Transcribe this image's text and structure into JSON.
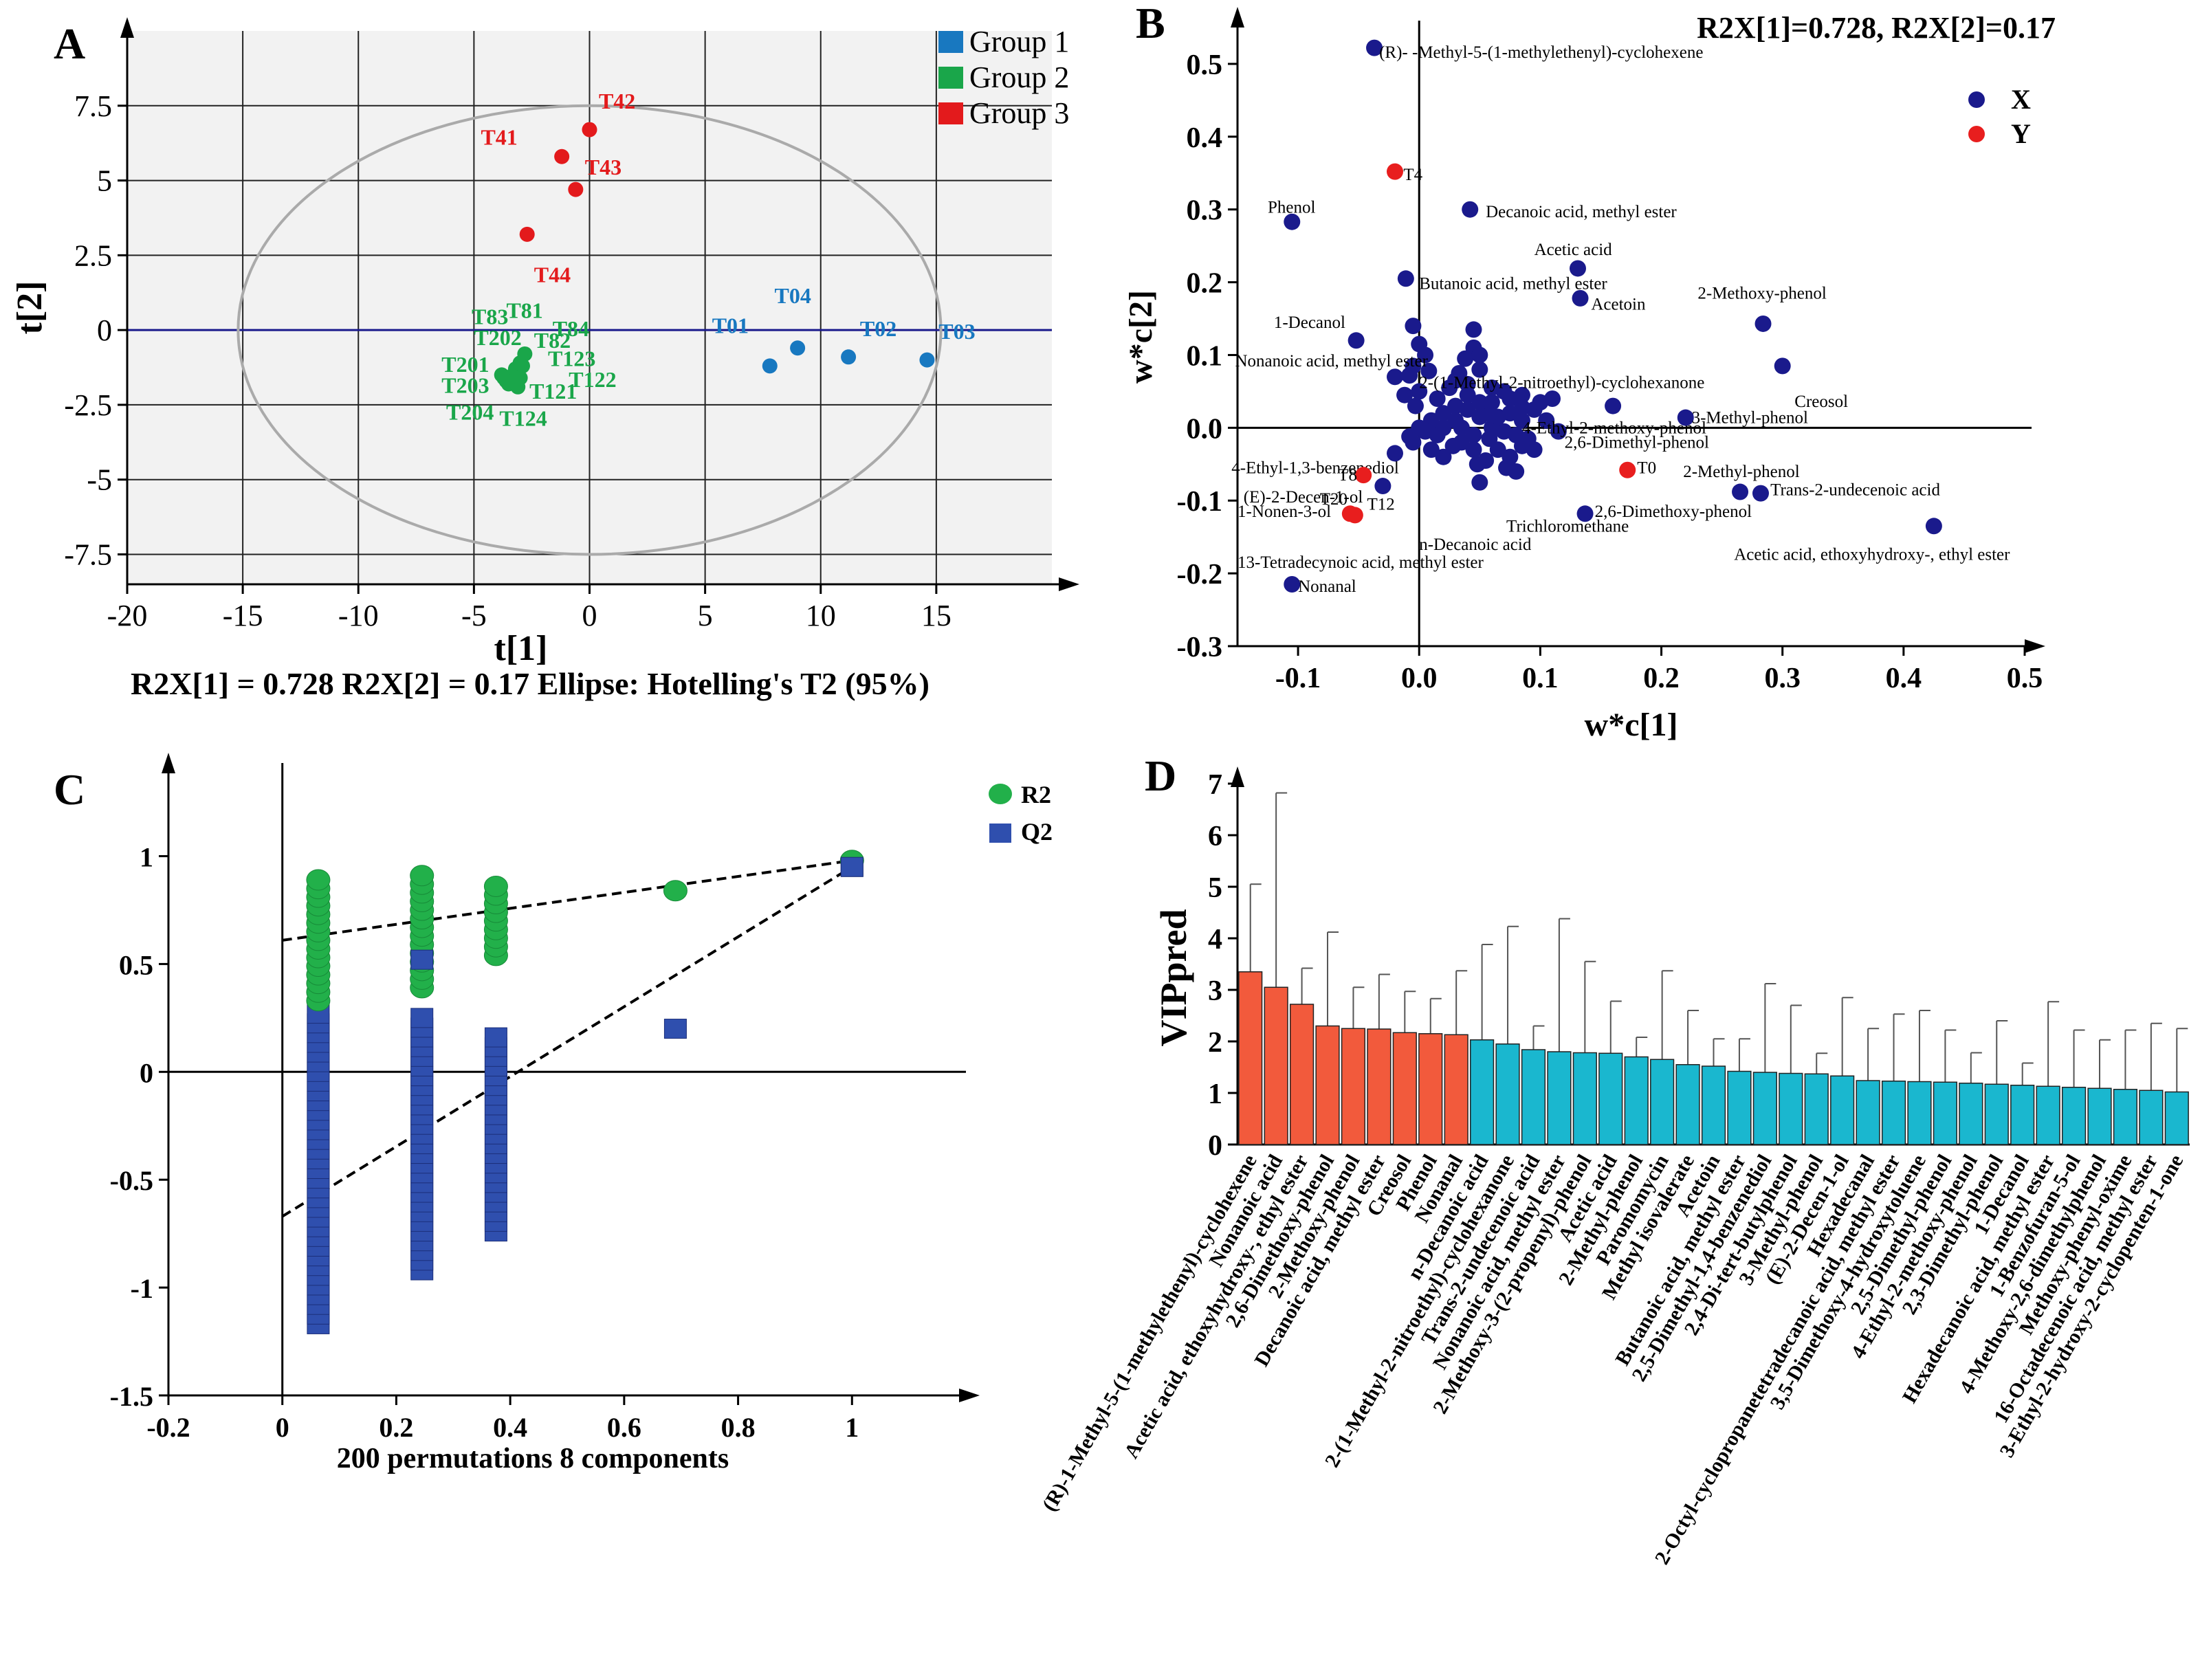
{
  "colors": {
    "group1": "#1878c0",
    "group2": "#1aa64a",
    "group3": "#e31a1c",
    "navy": "#1a1a8c",
    "red_dot": "#e81e1e",
    "r2": "#22b04a",
    "q2": "#2f4fae",
    "vip_top": "#f25a3c",
    "vip_rest": "#1ab7cf",
    "plot_bg": "#f2f2f2"
  },
  "chart_data": [
    {
      "panel": "A",
      "type": "scatter",
      "xlabel": "t[1]",
      "ylabel": "t[2]",
      "xlim": [
        -20,
        20
      ],
      "ylim": [
        -8.5,
        10
      ],
      "xticks": [
        -20,
        -15,
        -10,
        -5,
        0,
        5,
        10,
        15
      ],
      "yticks": [
        -7.5,
        -5,
        -2.5,
        0,
        2.5,
        5,
        7.5
      ],
      "xtick_labels": [
        "-20",
        "-15",
        "-10",
        "-5",
        "0",
        "5",
        "10",
        "15"
      ],
      "ytick_labels": [
        "-7.5",
        "-5",
        "-2.5",
        "0",
        "2.5",
        "5",
        "7.5"
      ],
      "footnote": "R2X[1] = 0.728   R2X[2] = 0.17     Ellipse: Hotelling's T2 (95%)",
      "legend": [
        "Group 1",
        "Group 2",
        "Group 3"
      ],
      "grid": true,
      "ellipse": {
        "cx": 0,
        "cy": 0,
        "rx": 15.2,
        "ry": 7.5
      },
      "points": [
        {
          "label": "T01",
          "x": 7.8,
          "y": -1.2,
          "group": 1,
          "lx": 5.3,
          "ly": -0.1
        },
        {
          "label": "T04",
          "x": 9.0,
          "y": -0.6,
          "group": 1,
          "lx": 8.0,
          "ly": 0.9
        },
        {
          "label": "T02",
          "x": 11.2,
          "y": -0.9,
          "group": 1,
          "lx": 11.7,
          "ly": -0.2
        },
        {
          "label": "T03",
          "x": 14.6,
          "y": -1.0,
          "group": 1,
          "lx": 15.1,
          "ly": -0.3
        },
        {
          "label": "T41",
          "x": -1.2,
          "y": 5.8,
          "group": 3,
          "lx": -4.7,
          "ly": 6.2
        },
        {
          "label": "T42",
          "x": 0.0,
          "y": 6.7,
          "group": 3,
          "lx": 0.4,
          "ly": 7.4
        },
        {
          "label": "T43",
          "x": -0.6,
          "y": 4.7,
          "group": 3,
          "lx": -0.2,
          "ly": 5.2
        },
        {
          "label": "T44",
          "x": -2.7,
          "y": 3.2,
          "group": 3,
          "lx": -2.4,
          "ly": 1.6
        },
        {
          "label": "T83",
          "x": -3.7,
          "y": -1.6,
          "group": 2,
          "lx": -5.1,
          "ly": 0.2
        },
        {
          "label": "T81",
          "x": -3.0,
          "y": -1.1,
          "group": 2,
          "lx": -3.6,
          "ly": 0.4
        },
        {
          "label": "T84",
          "x": -2.8,
          "y": -0.8,
          "group": 2,
          "lx": -1.6,
          "ly": -0.2
        },
        {
          "label": "T202",
          "x": -3.4,
          "y": -1.7,
          "group": 2,
          "lx": -5.0,
          "ly": -0.5
        },
        {
          "label": "T82",
          "x": -3.2,
          "y": -1.3,
          "group": 2,
          "lx": -2.4,
          "ly": -0.6
        },
        {
          "label": "T123",
          "x": -3.5,
          "y": -1.8,
          "group": 2,
          "lx": -1.8,
          "ly": -1.2
        },
        {
          "label": "T201",
          "x": -3.1,
          "y": -1.9,
          "group": 2,
          "lx": -6.4,
          "ly": -1.4
        },
        {
          "label": "T122",
          "x": -3.3,
          "y": -1.5,
          "group": 2,
          "lx": -0.9,
          "ly": -1.9
        },
        {
          "label": "T203",
          "x": -3.6,
          "y": -1.7,
          "group": 2,
          "lx": -6.4,
          "ly": -2.1
        },
        {
          "label": "T121",
          "x": -2.9,
          "y": -1.2,
          "group": 2,
          "lx": -2.6,
          "ly": -2.3
        },
        {
          "label": "T204",
          "x": -3.8,
          "y": -1.5,
          "group": 2,
          "lx": -6.2,
          "ly": -3.0
        },
        {
          "label": "T124",
          "x": -3.0,
          "y": -1.6,
          "group": 2,
          "lx": -3.9,
          "ly": -3.2
        }
      ]
    },
    {
      "panel": "B",
      "type": "scatter",
      "xlabel": "w*c[1]",
      "ylabel": "w*c[2]",
      "xlim": [
        -0.15,
        0.5
      ],
      "ylim": [
        -0.3,
        0.55
      ],
      "xticks": [
        -0.1,
        0,
        0.1,
        0.2,
        0.3,
        0.4,
        0.5
      ],
      "yticks": [
        -0.3,
        -0.2,
        -0.1,
        0,
        0.1,
        0.2,
        0.3,
        0.4,
        0.5
      ],
      "xtick_labels": [
        "-0.1",
        "0.0",
        "0.1",
        "0.2",
        "0.3",
        "0.4",
        "0.5"
      ],
      "ytick_labels": [
        "-0.3",
        "-0.2",
        "-0.1",
        "0.0",
        "0.1",
        "0.2",
        "0.3",
        "0.4",
        "0.5"
      ],
      "title": "R2X[1]=0.728, R2X[2]=0.17",
      "legend": [
        "X",
        "Y"
      ],
      "labeled_points": [
        {
          "label": "(R)-  -Methyl-5-(1-methylethenyl)-cyclohexene",
          "x": -0.037,
          "y": 0.522,
          "series": "X",
          "lx": -0.033,
          "ly": 0.516
        },
        {
          "label": "Phenol",
          "x": -0.105,
          "y": 0.283,
          "series": "X",
          "lx": -0.125,
          "ly": 0.303
        },
        {
          "label": "Decanoic acid, methyl ester",
          "x": 0.042,
          "y": 0.3,
          "series": "X",
          "lx": 0.055,
          "ly": 0.297
        },
        {
          "label": "Acetic acid",
          "x": 0.131,
          "y": 0.219,
          "series": "X",
          "lx": 0.095,
          "ly": 0.245
        },
        {
          "label": "Butanoic acid, methyl ester",
          "x": -0.011,
          "y": 0.205,
          "series": "X",
          "lx": 0.0,
          "ly": 0.198
        },
        {
          "label": "Acetoin",
          "x": 0.133,
          "y": 0.178,
          "series": "X",
          "lx": 0.142,
          "ly": 0.17
        },
        {
          "label": "2-Methoxy-phenol",
          "x": 0.284,
          "y": 0.143,
          "series": "X",
          "lx": 0.23,
          "ly": 0.185
        },
        {
          "label": "1-Decanol",
          "x": -0.052,
          "y": 0.12,
          "series": "X",
          "lx": -0.12,
          "ly": 0.145
        },
        {
          "label": "2-(1-Methyl-2-nitroethyl)-cyclohexanone",
          "x": -0.005,
          "y": 0.14,
          "series": "X",
          "lx": 0.0,
          "ly": 0.062
        },
        {
          "label": "Nonanoic acid, methyl ester",
          "x": -0.02,
          "y": 0.07,
          "series": "X",
          "lx": -0.152,
          "ly": 0.092
        },
        {
          "label": "Creosol",
          "x": 0.3,
          "y": 0.085,
          "series": "X",
          "lx": 0.31,
          "ly": 0.036
        },
        {
          "label": "4-Ethyl-2-methoxy-phenol",
          "x": 0.05,
          "y": 0.035,
          "series": "X",
          "lx": 0.085,
          "ly": -0.0
        },
        {
          "label": "3-Methyl-phenol",
          "x": 0.22,
          "y": 0.014,
          "series": "X",
          "lx": 0.225,
          "ly": 0.014
        },
        {
          "label": "4-Ethyl-1,3-benzenediol",
          "x": -0.012,
          "y": 0.045,
          "series": "X",
          "lx": -0.155,
          "ly": -0.055
        },
        {
          "label": "2,6-Dimethyl-phenol",
          "x": 0.16,
          "y": 0.03,
          "series": "X",
          "lx": 0.12,
          "ly": -0.02
        },
        {
          "label": "(E)-2-Decen-1-ol",
          "x": -0.008,
          "y": -0.012,
          "series": "X",
          "lx": -0.145,
          "ly": -0.095
        },
        {
          "label": "1-Nonen-3-ol",
          "x": -0.02,
          "y": -0.035,
          "series": "X",
          "lx": -0.15,
          "ly": -0.115
        },
        {
          "label": "2-Methyl-phenol",
          "x": 0.265,
          "y": -0.088,
          "series": "X",
          "lx": 0.218,
          "ly": -0.06
        },
        {
          "label": "Trans-2-undecenoic acid",
          "x": 0.282,
          "y": -0.09,
          "series": "X",
          "lx": 0.29,
          "ly": -0.085
        },
        {
          "label": "Trichloromethane",
          "x": 0.08,
          "y": -0.06,
          "series": "X",
          "lx": 0.072,
          "ly": -0.135
        },
        {
          "label": "2,6-Dimethoxy-phenol",
          "x": 0.137,
          "y": -0.118,
          "series": "X",
          "lx": 0.145,
          "ly": -0.115
        },
        {
          "label": "n-Decanoic acid",
          "x": 0.05,
          "y": -0.075,
          "series": "X",
          "lx": 0.0,
          "ly": -0.16
        },
        {
          "label": "13-Tetradecynoic acid, methyl ester",
          "x": -0.03,
          "y": -0.08,
          "series": "X",
          "lx": -0.15,
          "ly": -0.185
        },
        {
          "label": "Acetic acid, ethoxyhydroxy-, ethyl ester",
          "x": 0.425,
          "y": -0.135,
          "series": "X",
          "lx": 0.26,
          "ly": -0.174
        },
        {
          "label": "Nonanal",
          "x": -0.105,
          "y": -0.215,
          "series": "X",
          "lx": -0.1,
          "ly": -0.218
        },
        {
          "label": "T4",
          "x": -0.02,
          "y": 0.352,
          "series": "Y",
          "lx": -0.013,
          "ly": 0.348
        },
        {
          "label": "T0",
          "x": 0.172,
          "y": -0.058,
          "series": "Y",
          "lx": 0.18,
          "ly": -0.055
        },
        {
          "label": "T8",
          "x": -0.046,
          "y": -0.065,
          "series": "Y",
          "lx": -0.067,
          "ly": -0.065
        },
        {
          "label": "T20",
          "x": -0.057,
          "y": -0.118,
          "series": "Y",
          "lx": -0.082,
          "ly": -0.098
        },
        {
          "label": "T12",
          "x": -0.053,
          "y": -0.12,
          "series": "Y",
          "lx": -0.043,
          "ly": -0.105
        }
      ],
      "cluster_points": [
        [
          0.0,
          0.115
        ],
        [
          0.005,
          0.1
        ],
        [
          -0.005,
          0.085
        ],
        [
          0.008,
          0.078
        ],
        [
          -0.008,
          0.072
        ],
        [
          0.03,
          0.065
        ],
        [
          0.04,
          0.06
        ],
        [
          0.045,
          0.11
        ],
        [
          0.05,
          0.08
        ],
        [
          0.06,
          0.055
        ],
        [
          0.07,
          0.05
        ],
        [
          0.075,
          0.04
        ],
        [
          0.085,
          0.045
        ],
        [
          0.095,
          0.025
        ],
        [
          0.1,
          0.035
        ],
        [
          0.11,
          0.04
        ],
        [
          0.105,
          0.01
        ],
        [
          0.115,
          -0.005
        ],
        [
          0.09,
          -0.015
        ],
        [
          0.08,
          -0.01
        ],
        [
          0.07,
          -0.005
        ],
        [
          0.06,
          0.0
        ],
        [
          0.05,
          0.015
        ],
        [
          0.04,
          0.025
        ],
        [
          0.03,
          0.03
        ],
        [
          0.02,
          0.02
        ],
        [
          0.01,
          0.01
        ],
        [
          0.0,
          0.0
        ],
        [
          -0.005,
          -0.02
        ],
        [
          0.01,
          -0.03
        ],
        [
          0.02,
          -0.04
        ],
        [
          0.035,
          -0.02
        ],
        [
          0.045,
          -0.03
        ],
        [
          0.055,
          -0.045
        ],
        [
          0.065,
          -0.03
        ],
        [
          0.075,
          -0.04
        ],
        [
          0.085,
          -0.025
        ],
        [
          0.095,
          -0.03
        ],
        [
          0.04,
          0.045
        ],
        [
          0.03,
          0.01
        ],
        [
          0.015,
          -0.01
        ],
        [
          0.025,
          0.055
        ],
        [
          0.055,
          0.02
        ],
        [
          0.065,
          0.015
        ],
        [
          0.075,
          0.02
        ],
        [
          0.085,
          0.01
        ],
        [
          0.06,
          0.035
        ],
        [
          0.035,
          0.0
        ],
        [
          0.045,
          -0.01
        ],
        [
          0.02,
          0.0
        ],
        [
          0.0,
          0.05
        ],
        [
          -0.003,
          0.03
        ],
        [
          0.005,
          -0.005
        ],
        [
          0.072,
          -0.055
        ],
        [
          0.048,
          -0.05
        ],
        [
          0.033,
          0.075
        ],
        [
          0.038,
          0.095
        ],
        [
          0.015,
          0.04
        ],
        [
          0.085,
          0.028
        ],
        [
          0.045,
          0.135
        ],
        [
          0.05,
          0.1
        ],
        [
          0.028,
          -0.025
        ],
        [
          0.058,
          -0.015
        ]
      ]
    },
    {
      "panel": "C",
      "type": "scatter",
      "xlabel": "200 permutations 8 components",
      "xlim": [
        -0.2,
        1.2
      ],
      "ylim": [
        -1.5,
        1.4
      ],
      "xticks": [
        -0.2,
        0,
        0.2,
        0.4,
        0.6,
        0.8,
        1
      ],
      "yticks": [
        -1.5,
        -1,
        -0.5,
        0,
        0.5,
        1
      ],
      "xtick_labels": [
        "-0.2",
        "0",
        "0.2",
        "0.4",
        "0.6",
        "0.8",
        "1"
      ],
      "ytick_labels": [
        "-1.5",
        "-1",
        "-0.5",
        "0",
        "0.5",
        "1"
      ],
      "legend": [
        "R2",
        "Q2"
      ],
      "r2_columns": [
        {
          "x": 0.063,
          "ymin": 0.33,
          "ymax": 0.91
        },
        {
          "x": 0.245,
          "ymin": 0.39,
          "ymax": 0.92
        },
        {
          "x": 0.375,
          "ymin": 0.54,
          "ymax": 0.88
        }
      ],
      "q2_columns": [
        {
          "x": 0.063,
          "ymin": -1.17,
          "ymax": 0.27
        },
        {
          "x": 0.245,
          "ymin": -0.92,
          "ymax": 0.26
        },
        {
          "x": 0.375,
          "ymin": -0.74,
          "ymax": 0.2
        }
      ],
      "r2_extra": [
        {
          "x": 0.69,
          "y": 0.84
        },
        {
          "x": 1.0,
          "y": 0.98
        }
      ],
      "q2_extra": [
        {
          "x": 0.245,
          "y": 0.52
        },
        {
          "x": 0.69,
          "y": 0.2
        },
        {
          "x": 1.0,
          "y": 0.95
        }
      ],
      "r2_line": {
        "y_intercept": 0.61,
        "y_at_1": 0.98
      },
      "q2_line": {
        "y_intercept": -0.67,
        "y_at_1": 0.95
      }
    },
    {
      "panel": "D",
      "type": "bar",
      "ylabel": "VIPpred",
      "ylim": [
        0,
        7
      ],
      "yticks": [
        0,
        1,
        2,
        3,
        4,
        5,
        6,
        7
      ],
      "ytick_labels": [
        "0",
        "1",
        "2",
        "3",
        "4",
        "5",
        "6",
        "7"
      ],
      "highlight_count": 9,
      "categories": [
        "(R)-1-Methyl-5-(1-methylethenyl)-cyclohexene",
        "Nonanoic acid",
        "Acetic acid, ethoxyhydroxy-, ethyl ester",
        "2,6-Dimethoxy-phenol",
        "2-Methoxy-phenol",
        "Decanoic acid, methyl ester",
        "Creosol",
        "Phenol",
        "Nonanal",
        "n-Decanoic acid",
        "2-(1-Methyl-2-nitroethyl)-cyclohexanone",
        "Trans-2-undecenoic acid",
        "Nonanoic acid, methyl ester",
        "2-Methoxy-3-(2-propenyl)-phenol",
        "Acetic acid",
        "2-Methyl-phenol",
        "Paromomycin",
        "Methyl isovalerate",
        "Acetoin",
        "Butanoic acid, methyl ester",
        "2,5-Dimethyl-1,4-benzenediol",
        "2,4-Di-tert-butylphenol",
        "3-Methyl-phenol",
        "(E)-2-Decen-1-ol",
        "Hexadecanal",
        "2-Octyl-cyclopropanetetradecanoic acid, methyl ester",
        "3,5-Dimethoxy-4-hydroxytoluene",
        "2,5-Dimethyl-phenol",
        "4-Ethyl-2-methoxy-phenol",
        "2,3-Dimethyl-phenol",
        "1-Decanol",
        "Hexadecanoic acid, methyl ester",
        "1-Benzofuran-5-ol",
        "4-Methoxy-2,6-dimethylphenol",
        "Methoxy-phenyl-oxime",
        "16-Octadecenoic acid, methyl ester",
        "3-Ethyl-2-hydroxy-2-cyclopenten-1-one"
      ],
      "values": [
        3.35,
        3.05,
        2.72,
        2.3,
        2.25,
        2.24,
        2.17,
        2.15,
        2.13,
        2.03,
        1.95,
        1.84,
        1.8,
        1.78,
        1.77,
        1.7,
        1.65,
        1.55,
        1.52,
        1.42,
        1.4,
        1.38,
        1.37,
        1.33,
        1.24,
        1.23,
        1.22,
        1.21,
        1.19,
        1.17,
        1.15,
        1.13,
        1.11,
        1.09,
        1.07,
        1.05,
        1.02
      ],
      "errors": [
        5.05,
        6.82,
        3.42,
        4.12,
        3.05,
        3.3,
        2.97,
        2.83,
        3.37,
        3.88,
        4.23,
        2.3,
        4.38,
        3.55,
        2.78,
        2.08,
        3.37,
        2.6,
        2.05,
        2.05,
        3.12,
        2.7,
        1.77,
        2.85,
        2.25,
        2.53,
        2.6,
        2.22,
        1.78,
        2.4,
        1.58,
        2.77,
        2.22,
        2.03,
        2.22,
        2.35,
        2.25
      ]
    }
  ],
  "panels": {
    "a": "A",
    "b": "B",
    "c": "C",
    "d": "D"
  }
}
